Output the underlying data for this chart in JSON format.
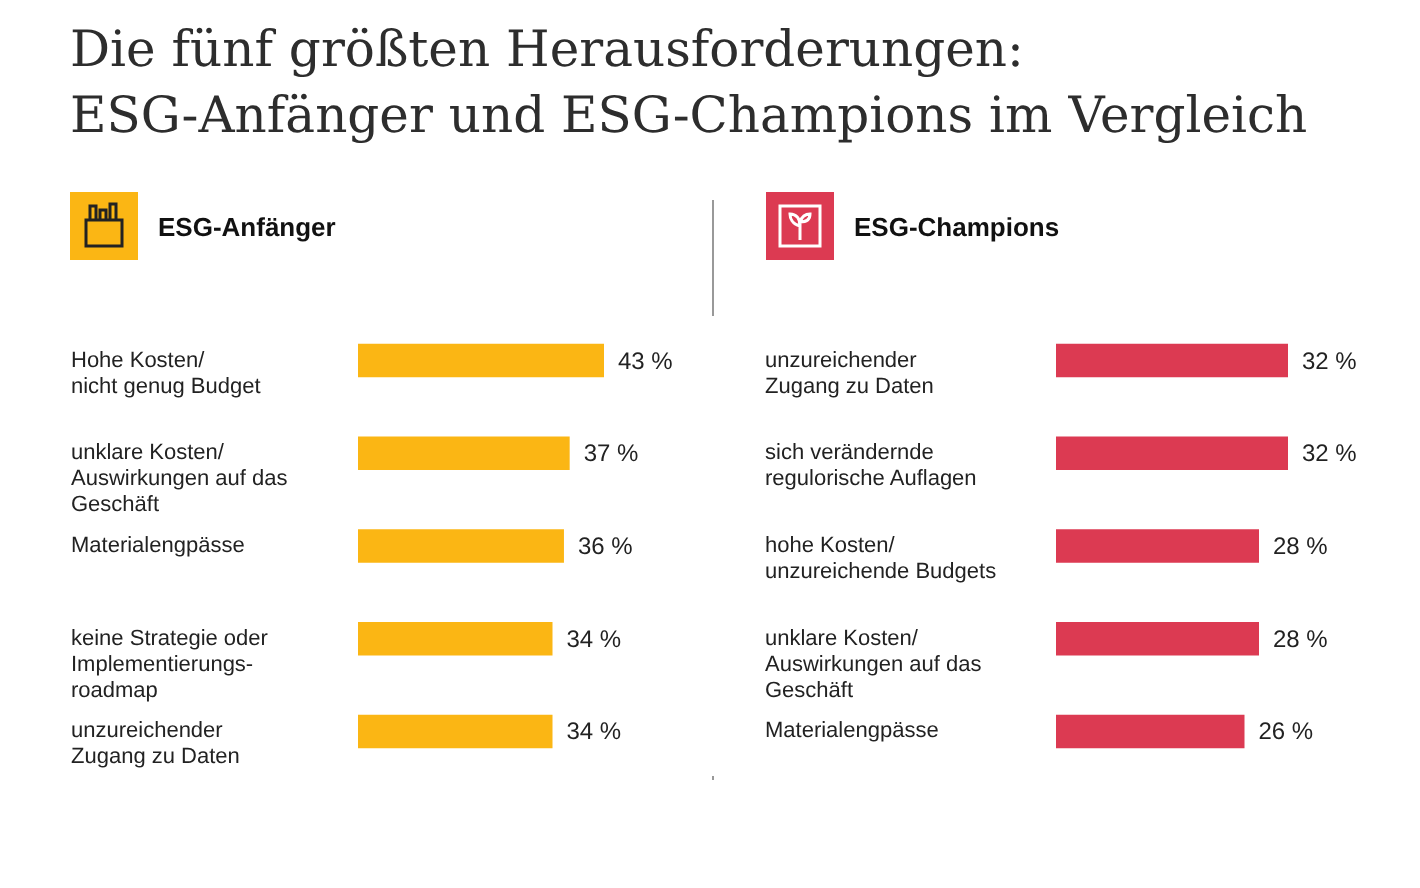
{
  "chart_data": [
    {
      "type": "bar",
      "orientation": "horizontal",
      "title": "Die fünf größten Herausforderungen:\nESG-Anfänger und ESG-Champions im Vergleich",
      "subtitle": "ESG-Anfänger",
      "categories": [
        "Hohe Kosten/\nnicht genug Budget",
        "unklare Kosten/\nAuswirkungen auf das\nGeschäft",
        "Materialengpässe",
        "keine Strategie oder\nImplementierungs-\nroadmap",
        "unzureichender\nZugang zu Daten"
      ],
      "values": [
        43,
        37,
        36,
        34,
        34
      ],
      "value_labels": [
        "43 %",
        "37 %",
        "36 %",
        "34 %",
        "34 %"
      ],
      "color": "#fbb614"
    },
    {
      "type": "bar",
      "orientation": "horizontal",
      "title": "ESG-Champions",
      "categories": [
        "unzureichender\nZugang zu Daten",
        "sich verändernde\nregulorische Auflagen",
        "hohe Kosten/\nunzureichende Budgets",
        "unklare Kosten/\nAuswirkungen auf das\nGeschäft",
        "Materialengpässe"
      ],
      "values": [
        32,
        32,
        28,
        28,
        26
      ],
      "value_labels": [
        "32 %",
        "32 %",
        "28 %",
        "28 %",
        "26 %"
      ],
      "color": "#dc3a52"
    }
  ]
}
